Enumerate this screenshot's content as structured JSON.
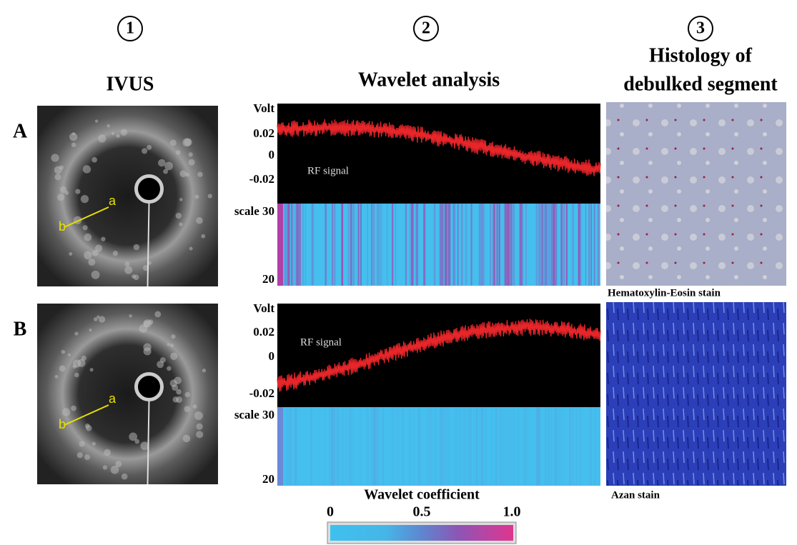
{
  "columns": [
    {
      "number": "1",
      "title": [
        "IVUS"
      ]
    },
    {
      "number": "2",
      "title": [
        "Wavelet analysis"
      ]
    },
    {
      "number": "3",
      "title": [
        "Histology of",
        "debulked segment"
      ]
    }
  ],
  "rows": [
    {
      "label": "A",
      "ivus_marks": [
        "a",
        "b"
      ],
      "volt_label": "Volt",
      "volt_ticks": [
        "0.02",
        "0",
        "-0.02"
      ],
      "rf_label": "RF signal",
      "scale_top": "scale 30",
      "scale_bottom": "20",
      "stain": "Hematoxylin-Eosin stain"
    },
    {
      "label": "B",
      "ivus_marks": [
        "a",
        "b"
      ],
      "volt_label": "Volt",
      "volt_ticks": [
        "0.02",
        "0",
        "-0.02"
      ],
      "rf_label": "RF signal",
      "scale_top": "scale 30",
      "scale_bottom": "20",
      "stain": "Azan stain"
    }
  ],
  "colorbar": {
    "title": "Wavelet coefficient",
    "ticks": [
      "0",
      "0.5",
      "1.0"
    ]
  }
}
